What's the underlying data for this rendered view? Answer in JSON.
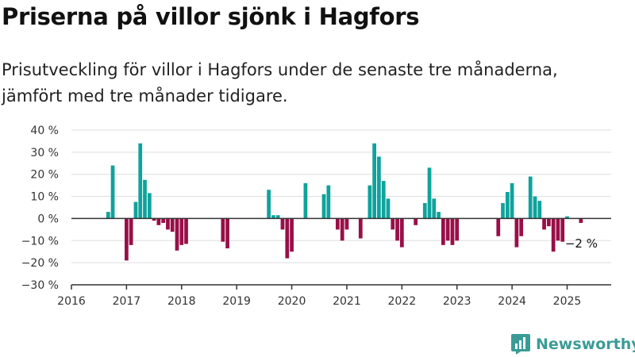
{
  "header": {
    "title": "Priserna på villor sjönk i Hagfors",
    "subtitle": "Prisutveckling för villor i Hagfors under de senaste tre månaderna, jämfört med tre månader tidigare."
  },
  "brand": {
    "name": "Newsworthy",
    "icon": "bar-chart-logo-icon",
    "color": "#3b9c96"
  },
  "colors": {
    "positive": "#0fa39c",
    "negative": "#990f48",
    "grid": "#dddddd",
    "axis": "#333333"
  },
  "chart_data": {
    "type": "bar",
    "title": "Priserna på villor sjönk i Hagfors",
    "xlabel": "",
    "ylabel": "",
    "ylim": [
      -30,
      40
    ],
    "yticks": [
      -30,
      -20,
      -10,
      0,
      10,
      20,
      30,
      40
    ],
    "ytick_labels": [
      "−30 %",
      "−20 %",
      "−10 %",
      "0 %",
      "10 %",
      "20 %",
      "30 %",
      "40 %"
    ],
    "xlim": [
      2016.0,
      2025.8
    ],
    "xticks": [
      2016,
      2017,
      2018,
      2019,
      2020,
      2021,
      2022,
      2023,
      2024,
      2025
    ],
    "xtick_labels": [
      "2016",
      "2017",
      "2018",
      "2019",
      "2020",
      "2021",
      "2022",
      "2023",
      "2024",
      "2025"
    ],
    "grid": true,
    "annotation": {
      "text": "−2 %",
      "x": 2025.25,
      "y": -2
    },
    "series": [
      {
        "x": [
          2016.667,
          2016.75,
          2017.0,
          2017.083,
          2017.167,
          2017.25,
          2017.333,
          2017.417,
          2017.5,
          2017.583,
          2017.667,
          2017.75,
          2017.833,
          2017.917,
          2018.0,
          2018.083,
          2018.75,
          2018.833,
          2019.583,
          2019.667,
          2019.75,
          2019.833,
          2019.917,
          2020.0,
          2020.25,
          2020.583,
          2020.667,
          2020.833,
          2020.917,
          2021.0,
          2021.25,
          2021.417,
          2021.5,
          2021.583,
          2021.667,
          2021.75,
          2021.833,
          2021.917,
          2022.0,
          2022.25,
          2022.417,
          2022.5,
          2022.583,
          2022.667,
          2022.75,
          2022.833,
          2022.917,
          2023.0,
          2023.75,
          2023.833,
          2023.917,
          2024.0,
          2024.083,
          2024.167,
          2024.333,
          2024.417,
          2024.5,
          2024.583,
          2024.667,
          2024.75,
          2024.833,
          2024.917,
          2025.0,
          2025.25
        ],
        "values": [
          3,
          24,
          -19,
          -12,
          7.5,
          34,
          17.5,
          11.5,
          -1,
          -3,
          -2,
          -5,
          -6,
          -14.5,
          -12,
          -11.5,
          -10.5,
          -13.5,
          13,
          1.5,
          1.5,
          -5,
          -18,
          -15,
          16,
          11,
          15,
          -5,
          -10,
          -5,
          -9,
          15,
          34,
          28,
          17,
          9,
          -5,
          -10,
          -13,
          -3,
          7,
          23,
          9,
          3,
          -12,
          -10,
          -12,
          -10,
          -8,
          7,
          12,
          16,
          -13,
          -8,
          19,
          10,
          8,
          -5,
          -3.5,
          -15,
          -10,
          -10.5,
          1,
          -2
        ]
      }
    ]
  }
}
